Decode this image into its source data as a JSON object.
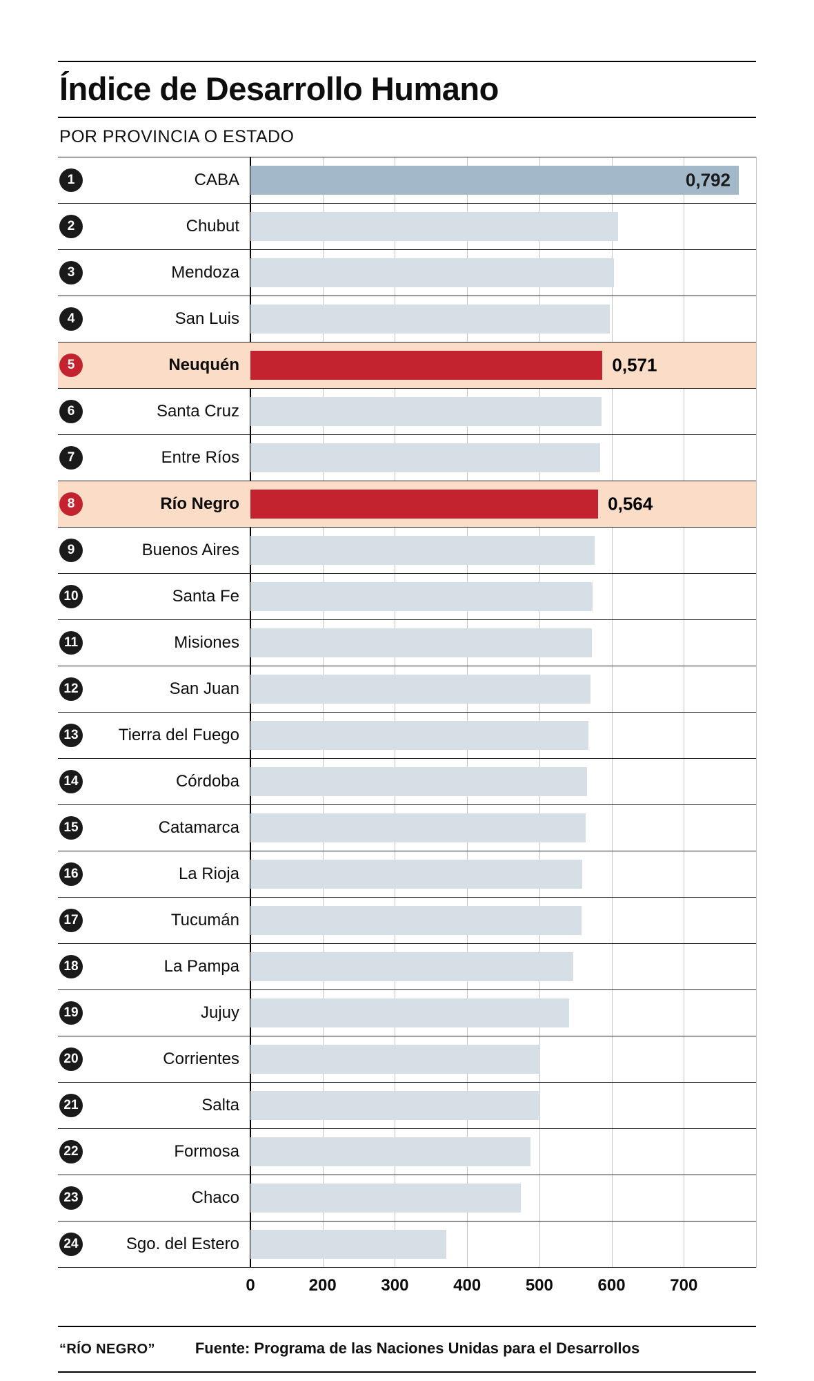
{
  "header": {
    "title": "Índice de Desarrollo Humano",
    "subtitle": "POR PROVINCIA O ESTADO"
  },
  "footer": {
    "brand": "“RÍO NEGRO”",
    "source": "Fuente: Programa de las Naciones Unidas para el Desarrollos"
  },
  "colors": {
    "bar_default": "#d6dee6",
    "bar_top": "#a3b9ca",
    "bar_highlight": "#c2232e",
    "row_highlight_bg": "#fadcc7",
    "badge_default": "#1a1a1a",
    "badge_highlight": "#c2232e"
  },
  "chart_data": {
    "type": "bar",
    "orientation": "horizontal",
    "title": "Índice de Desarrollo Humano",
    "subtitle": "POR PROVINCIA O ESTADO",
    "gridlines": true,
    "x_ticks": [
      0,
      200,
      300,
      400,
      500,
      600,
      700
    ],
    "n_grid_segments": 7,
    "axis_max_value": 0.82,
    "rows": [
      {
        "rank": 1,
        "label": "CABA",
        "value": 0.792,
        "value_label": "0,792",
        "style": "top",
        "value_label_position": "inside"
      },
      {
        "rank": 2,
        "label": "Chubut",
        "value": 0.596
      },
      {
        "rank": 3,
        "label": "Mendoza",
        "value": 0.59
      },
      {
        "rank": 4,
        "label": "San Luis",
        "value": 0.583
      },
      {
        "rank": 5,
        "label": "Neuquén",
        "value": 0.571,
        "value_label": "0,571",
        "style": "highlight",
        "value_label_position": "outside"
      },
      {
        "rank": 6,
        "label": "Santa Cruz",
        "value": 0.569
      },
      {
        "rank": 7,
        "label": "Entre Ríos",
        "value": 0.567
      },
      {
        "rank": 8,
        "label": "Río Negro",
        "value": 0.564,
        "value_label": "0,564",
        "style": "highlight",
        "value_label_position": "outside"
      },
      {
        "rank": 9,
        "label": "Buenos Aires",
        "value": 0.558
      },
      {
        "rank": 10,
        "label": "Santa Fe",
        "value": 0.555
      },
      {
        "rank": 11,
        "label": "Misiones",
        "value": 0.554
      },
      {
        "rank": 12,
        "label": "San Juan",
        "value": 0.551
      },
      {
        "rank": 13,
        "label": "Tierra del Fuego",
        "value": 0.548
      },
      {
        "rank": 14,
        "label": "Córdoba",
        "value": 0.546
      },
      {
        "rank": 15,
        "label": "Catamarca",
        "value": 0.544
      },
      {
        "rank": 16,
        "label": "La Rioja",
        "value": 0.538
      },
      {
        "rank": 17,
        "label": "Tucumán",
        "value": 0.537
      },
      {
        "rank": 18,
        "label": "La Pampa",
        "value": 0.524
      },
      {
        "rank": 19,
        "label": "Jujuy",
        "value": 0.517
      },
      {
        "rank": 20,
        "label": "Corrientes",
        "value": 0.47
      },
      {
        "rank": 21,
        "label": "Salta",
        "value": 0.468
      },
      {
        "rank": 22,
        "label": "Formosa",
        "value": 0.454
      },
      {
        "rank": 23,
        "label": "Chaco",
        "value": 0.439
      },
      {
        "rank": 24,
        "label": "Sgo. del Estero",
        "value": 0.318
      }
    ]
  }
}
